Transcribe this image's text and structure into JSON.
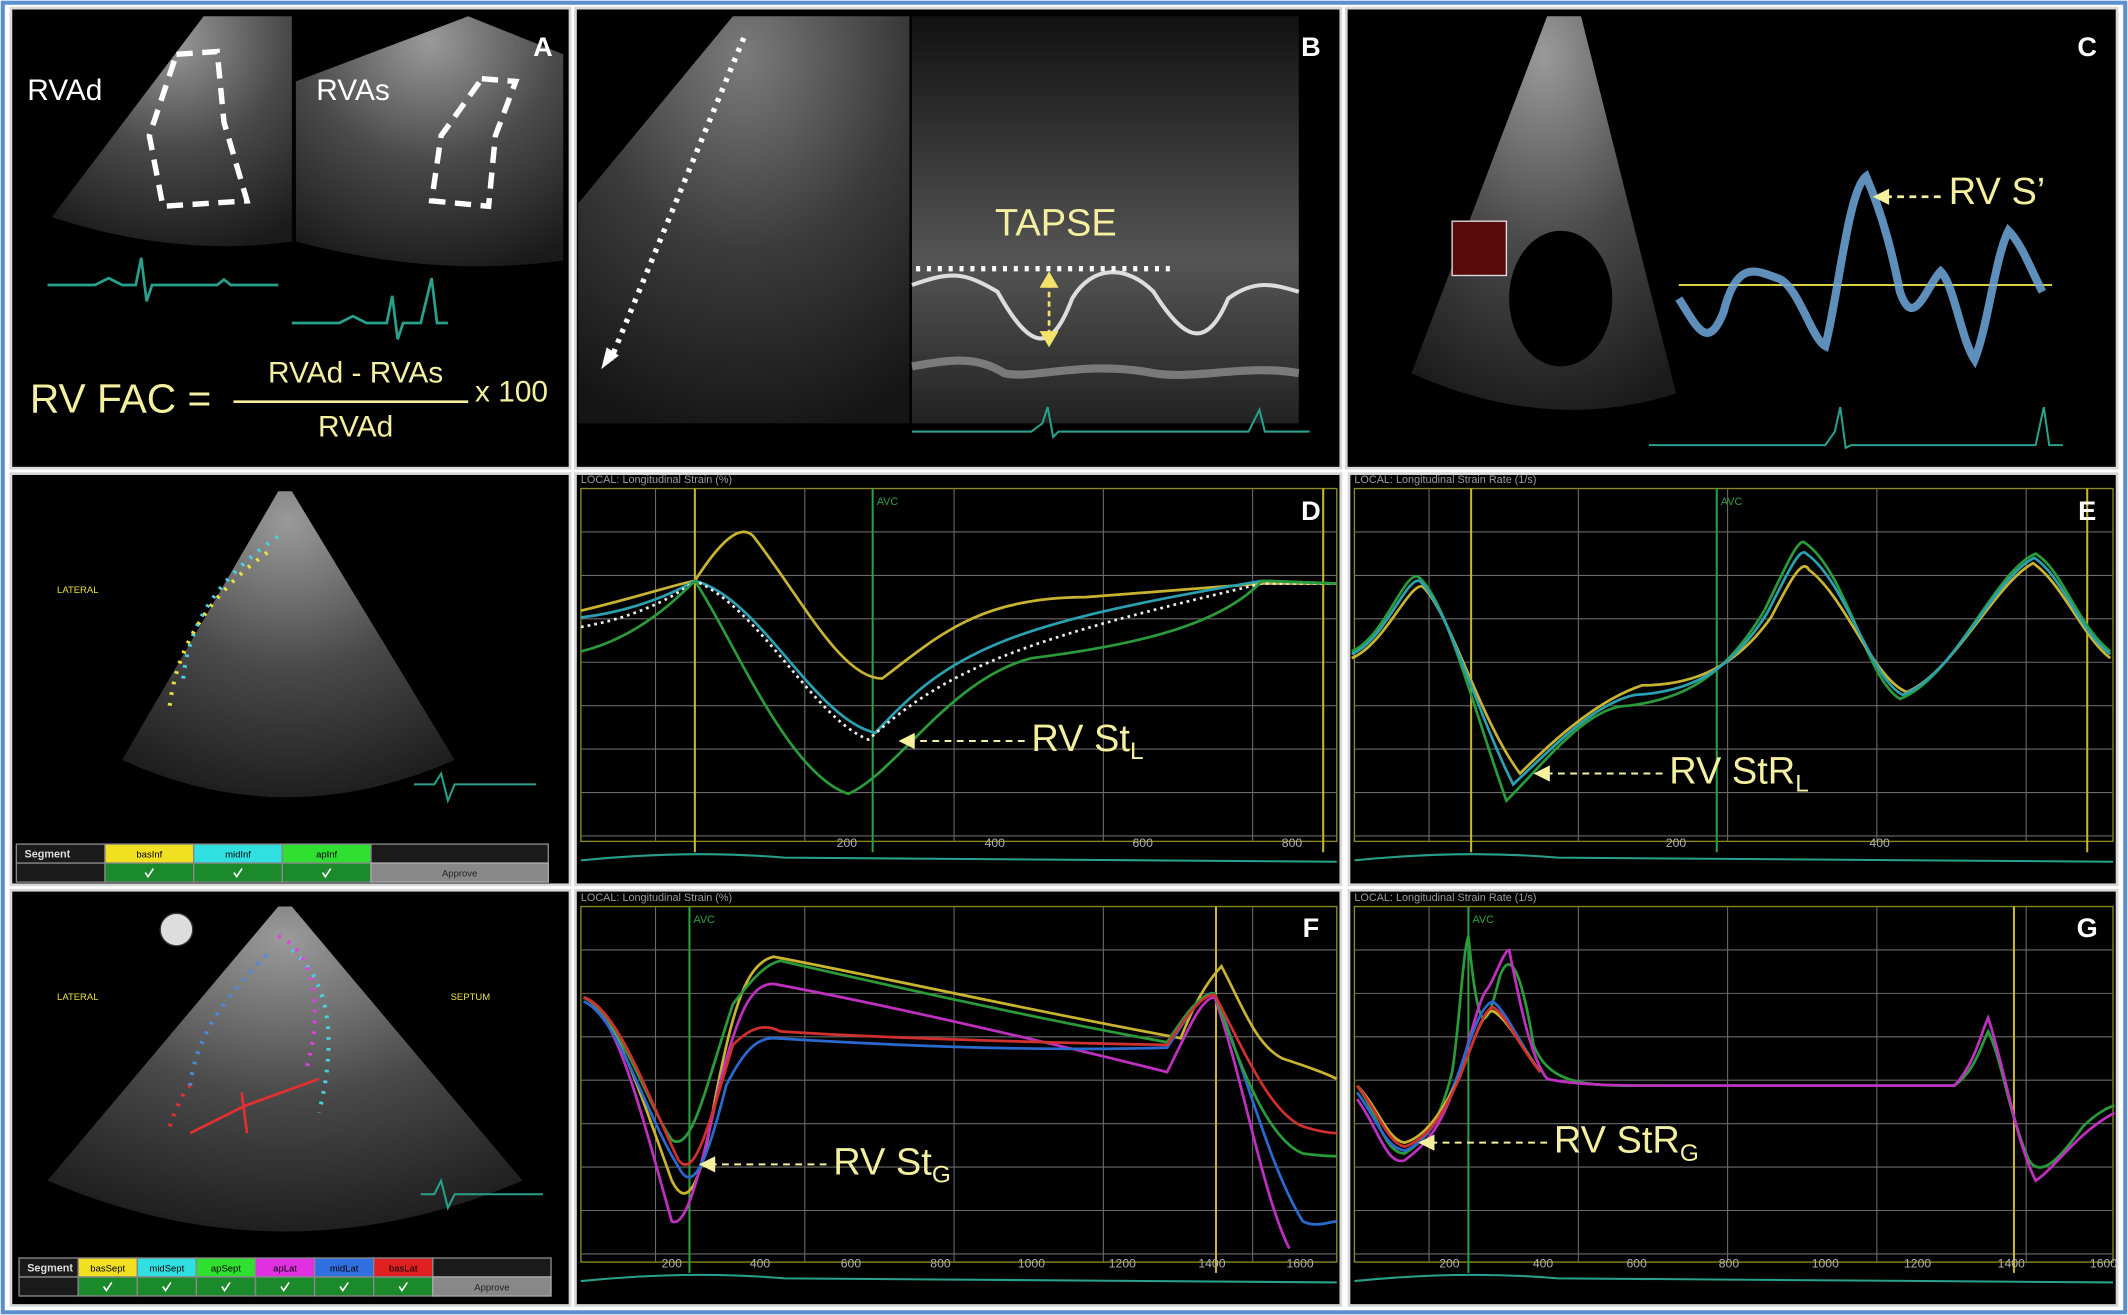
{
  "panel_a": {
    "label": "A",
    "left_caption": "RVAd",
    "right_caption": "RVAs",
    "formula": {
      "lhs": "RV FAC =",
      "numerator": "RVAd - RVAs",
      "denominator": "RVAd",
      "multiplier": "x 100"
    }
  },
  "panel_b": {
    "label": "B",
    "annotation": "TAPSE"
  },
  "panel_c": {
    "label": "C",
    "annotation": "RV S’"
  },
  "echo_middle": {
    "side": "LATERAL",
    "segment_header": "Segment",
    "segments": [
      "basInf",
      "midInf",
      "apInf"
    ],
    "approve": "Approve"
  },
  "echo_bottom": {
    "left_side": "LATERAL",
    "right_side": "SEPTUM",
    "segment_header": "Segment",
    "segments": [
      "basSept",
      "midSept",
      "apSept",
      "apLat",
      "midLat",
      "basLat"
    ],
    "approve": "Approve"
  },
  "panel_d": {
    "label": "D",
    "header": "LOCAL: Longitudinal Strain (%)",
    "marker": "AVC",
    "annotation": {
      "text": "RV St",
      "subscript": "L"
    },
    "x_ticks": [
      "200",
      "400",
      "600",
      "800"
    ]
  },
  "panel_e": {
    "label": "E",
    "header": "LOCAL: Longitudinal Strain Rate (1/s)",
    "marker": "AVC",
    "annotation": {
      "text": "RV StR",
      "subscript": "L"
    },
    "x_ticks": [
      "200",
      "400"
    ]
  },
  "panel_f": {
    "label": "F",
    "header": "LOCAL: Longitudinal Strain (%)",
    "marker": "AVC",
    "annotation": {
      "text": "RV St",
      "subscript": "G"
    },
    "x_ticks": [
      "200",
      "400",
      "600",
      "800",
      "1000",
      "1200",
      "1400",
      "1600"
    ]
  },
  "panel_g": {
    "label": "G",
    "header": "LOCAL: Longitudinal Strain Rate (1/s)",
    "marker": "AVC",
    "annotation": {
      "text": "RV StR",
      "subscript": "G"
    },
    "x_ticks": [
      "200",
      "400",
      "600",
      "800",
      "1000",
      "1200",
      "1400",
      "1600"
    ]
  }
}
